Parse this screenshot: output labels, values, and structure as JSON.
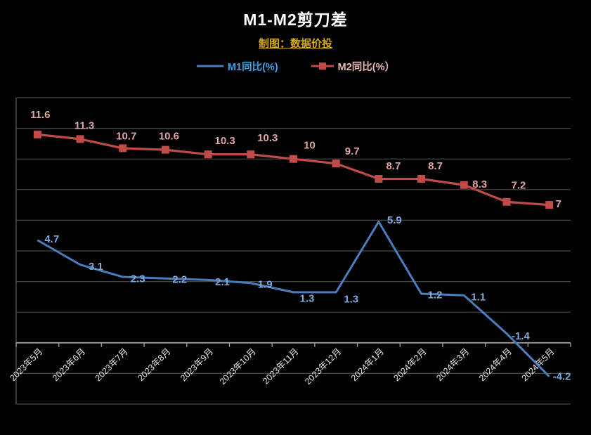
{
  "title": "M1-M2剪刀差",
  "subtitle": "制图：数据价投",
  "colors": {
    "background": "#000000",
    "title": "#ffffff",
    "subtitle": "#d9ac0d",
    "grid": "#4a4a4a",
    "plot_border": "#5a5a5a",
    "axis": "#9a9a9a",
    "tick_label": "#e6e6e6",
    "m1_line": "#4a7ebc",
    "m1_label": "#7fa8dc",
    "m1_legend_text": "#3d9fe0",
    "m2_line": "#c04b49",
    "m2_label": "#dfa5a3",
    "m2_legend_text": "#e5bab8"
  },
  "chart_data": {
    "type": "line",
    "categories": [
      "2023年5月",
      "2023年6月",
      "2023年7月",
      "2023年8月",
      "2023年9月",
      "2023年10月",
      "2023年11月",
      "2023年12月",
      "2024年1月",
      "2024年2月",
      "2024年3月",
      "2024年4月",
      "2024年5月"
    ],
    "series": [
      {
        "name": "M1同比(%)",
        "values": [
          4.7,
          3.1,
          2.3,
          2.2,
          2.1,
          1.9,
          1.3,
          1.3,
          5.9,
          1.2,
          1.1,
          -1.4,
          -4.2
        ],
        "marker": "none"
      },
      {
        "name": "M2同比(%）",
        "values": [
          11.6,
          11.3,
          10.7,
          10.6,
          10.3,
          10.3,
          10,
          9.7,
          8.7,
          8.7,
          8.3,
          7.2,
          7
        ],
        "marker": "square"
      }
    ],
    "ylim": [
      -6,
      14
    ],
    "y_major_unit": 2,
    "x_axis_crosses_at": -2,
    "grid": "horizontal",
    "y_axis_visible": false,
    "legend_position": "top",
    "data_labels": true
  }
}
